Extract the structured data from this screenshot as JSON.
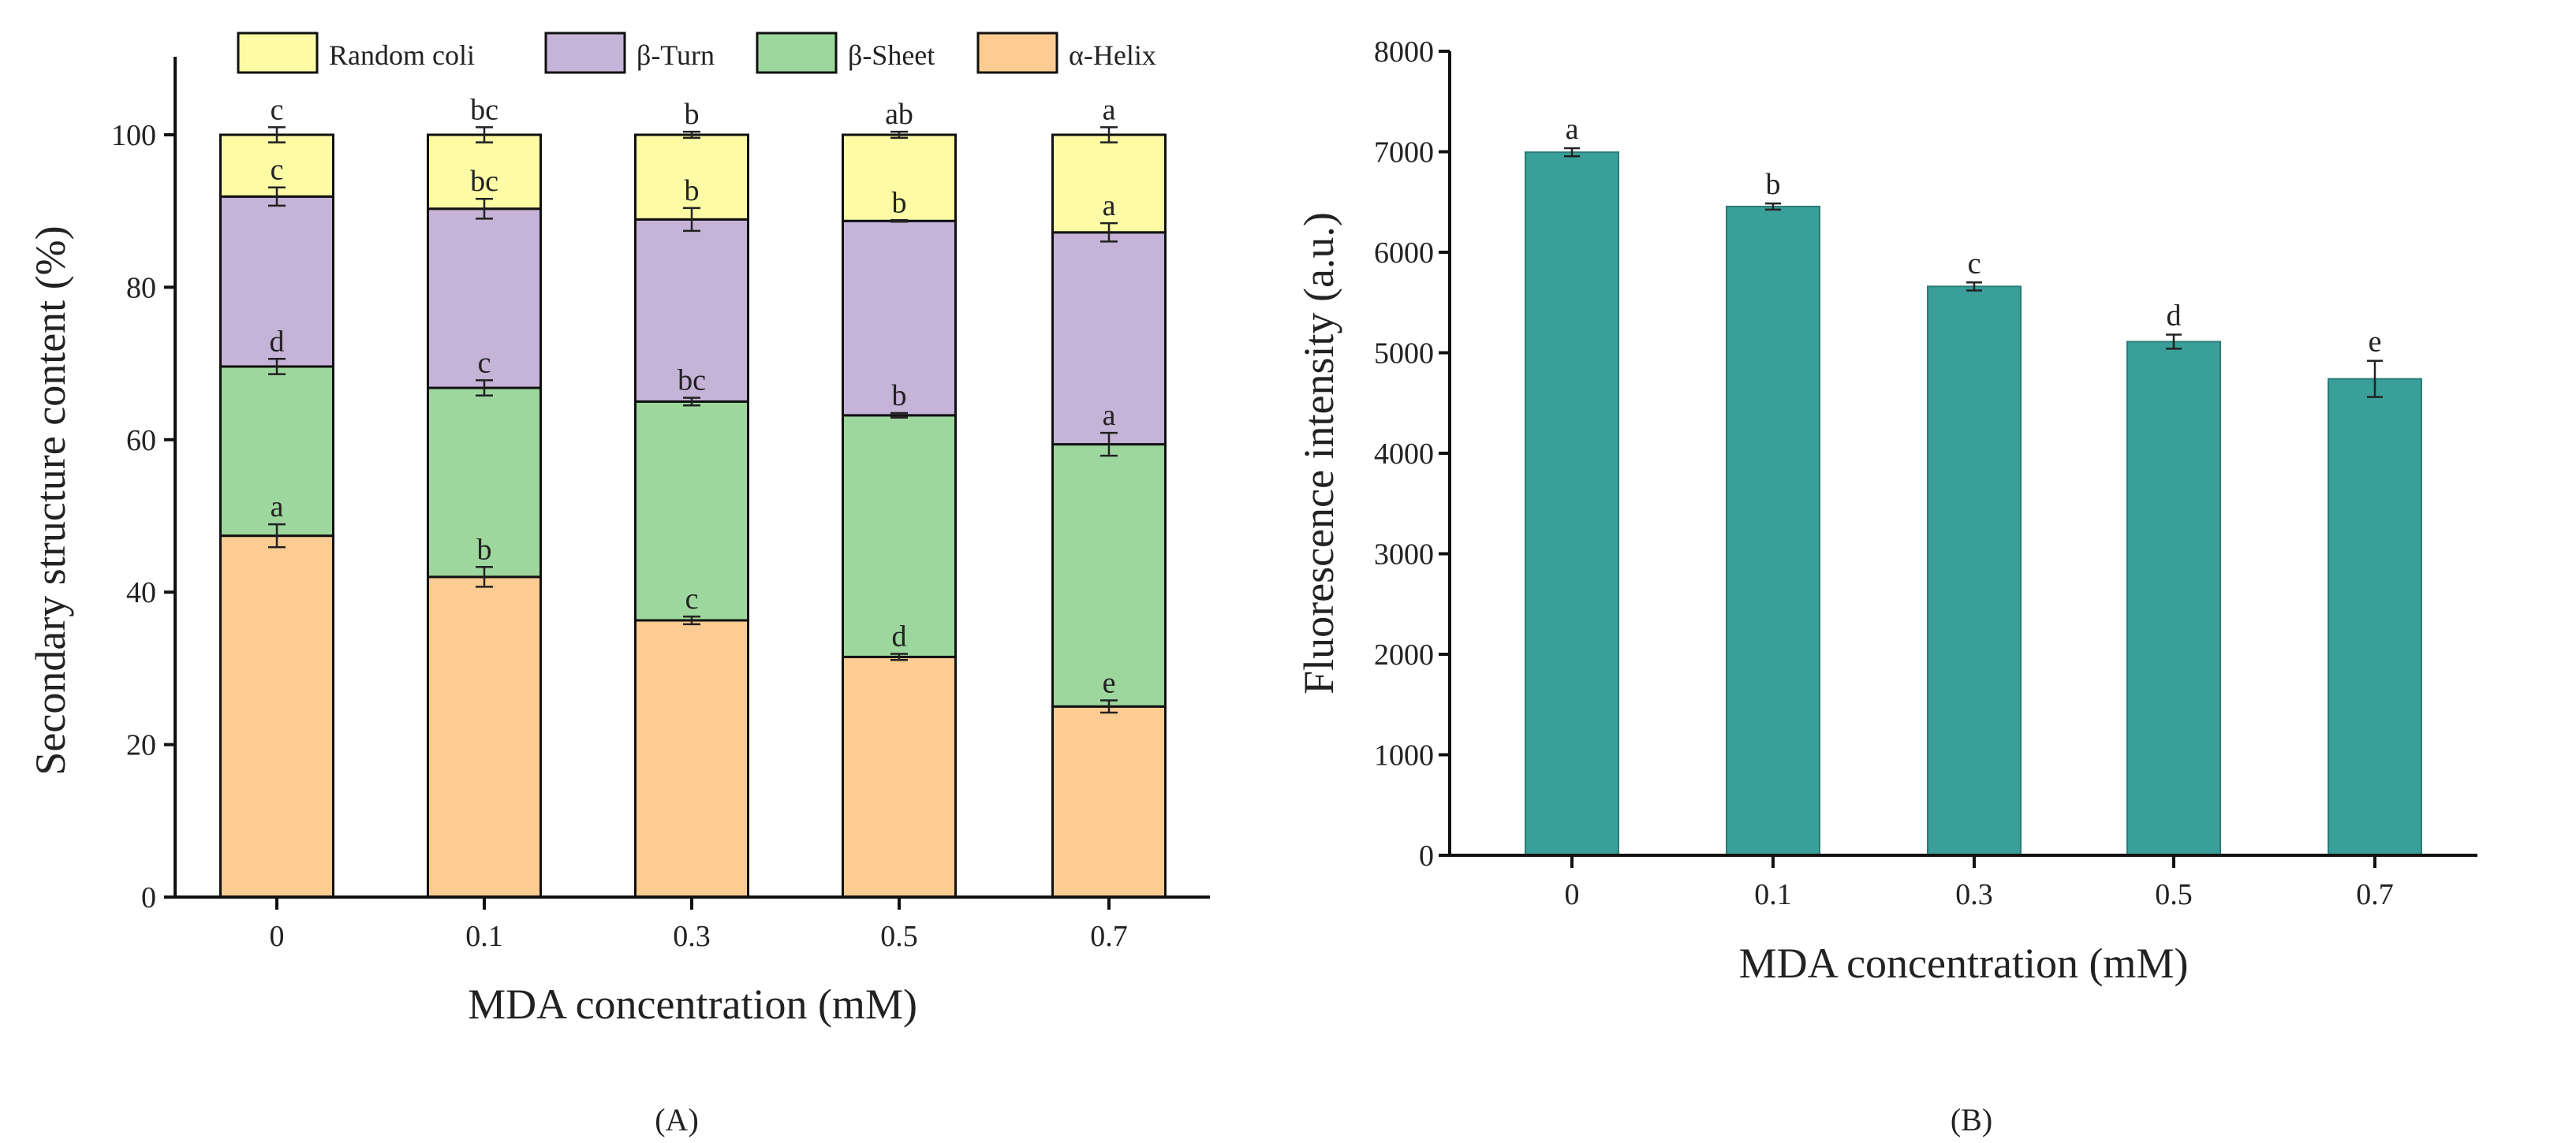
{
  "chart_data": [
    {
      "type": "bar",
      "stacked": true,
      "panel_label": "(A)",
      "xlabel": "MDA concentration (mM)",
      "ylabel": "Secondary structure content (%)",
      "ylim": [
        0,
        110
      ],
      "yticks": [
        "0",
        "20",
        "40",
        "60",
        "80",
        "100"
      ],
      "categories": [
        "0",
        "0.1",
        "0.3",
        "0.5",
        "0.7"
      ],
      "legend_position": "top",
      "series": [
        {
          "name": "α-Helix",
          "color": "#fdcc92",
          "values": [
            47.4,
            42.0,
            36.3,
            31.5,
            25.0
          ],
          "errors": [
            1.5,
            1.3,
            0.5,
            0.4,
            0.8
          ],
          "letters": [
            "a",
            "b",
            "c",
            "d",
            "e"
          ]
        },
        {
          "name": "β-Sheet",
          "color": "#9dd79d",
          "values": [
            22.2,
            24.8,
            28.7,
            31.7,
            34.4
          ],
          "errors": [
            1.0,
            1.0,
            0.5,
            0.3,
            1.5
          ],
          "letters": [
            "d",
            "c",
            "bc",
            "b",
            "a"
          ]
        },
        {
          "name": "β-Turn",
          "color": "#c5b3d8",
          "values": [
            22.3,
            23.5,
            23.9,
            25.5,
            27.8
          ],
          "errors": [
            1.2,
            1.3,
            1.5,
            0.1,
            1.2
          ],
          "letters": [
            "c",
            "bc",
            "b",
            "b",
            "a"
          ]
        },
        {
          "name": "Random coli",
          "color": "#fdfca5",
          "values": [
            8.1,
            9.7,
            11.1,
            11.3,
            12.8
          ],
          "errors": [
            1.0,
            1.0,
            0.4,
            0.4,
            1.0
          ],
          "letters": [
            "c",
            "bc",
            "b",
            "ab",
            "a"
          ]
        }
      ],
      "legend_order": [
        "Random coli",
        "β-Turn",
        "β-Sheet",
        "α-Helix"
      ]
    },
    {
      "type": "bar",
      "panel_label": "(B)",
      "xlabel": "MDA concentration (mM)",
      "ylabel": "Fluorescence intensity (a.u.)",
      "ylim": [
        0,
        8000
      ],
      "yticks": [
        "0",
        "1000",
        "2000",
        "3000",
        "4000",
        "5000",
        "6000",
        "7000",
        "8000"
      ],
      "categories": [
        "0",
        "0.1",
        "0.3",
        "0.5",
        "0.7"
      ],
      "color": "#3a9e99",
      "values": [
        6995,
        6455,
        5660,
        5110,
        4740
      ],
      "errors": [
        40,
        30,
        40,
        70,
        180
      ],
      "letters": [
        "a",
        "b",
        "c",
        "d",
        "e"
      ]
    }
  ]
}
